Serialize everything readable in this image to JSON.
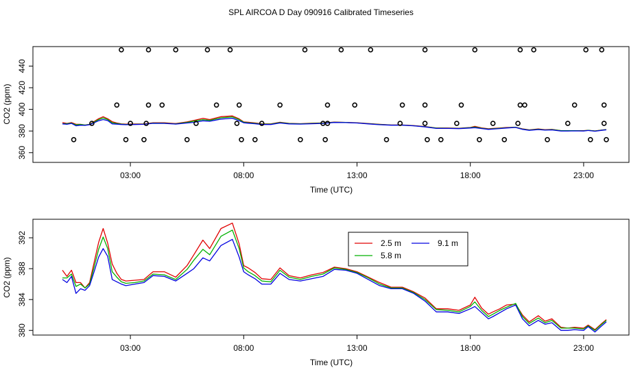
{
  "title": "SPL AIRCOA D  Day 090916  Calibrated Timeseries",
  "colors": {
    "series_2_5": "#e00000",
    "series_5_8": "#00b000",
    "series_9_1": "#0000e0"
  },
  "chart_data": [
    {
      "type": "scatter+line",
      "xlabel": "Time (UTC)",
      "ylabel": "CO2 (ppm)",
      "xlim": [
        -1.3,
        25
      ],
      "ylim": [
        351,
        458
      ],
      "xticks": [
        3,
        8,
        13,
        18,
        23
      ],
      "xtick_labels": [
        "03:00",
        "08:00",
        "13:00",
        "18:00",
        "23:00"
      ],
      "yticks": [
        360,
        380,
        400,
        420,
        440
      ],
      "ytick_labels": [
        "360",
        "380",
        "400",
        "420",
        "440"
      ],
      "calibration_points": {
        "x": [
          0.5,
          1.3,
          2.4,
          2.6,
          2.8,
          3.0,
          3.6,
          3.7,
          3.8,
          3.8,
          4.4,
          5.0,
          5.5,
          5.9,
          6.4,
          6.8,
          7.4,
          7.7,
          7.8,
          7.9,
          8.5,
          8.8,
          9.6,
          10.5,
          10.7,
          11.5,
          11.6,
          11.7,
          11.7,
          12.3,
          12.9,
          13.6,
          14.3,
          14.9,
          15.0,
          16.0,
          16.0,
          16.0,
          16.1,
          16.7,
          17.4,
          17.6,
          18.2,
          18.4,
          19.0,
          19.5,
          20.1,
          20.2,
          20.2,
          20.4,
          20.8,
          21.4,
          22.3,
          22.6,
          23.1,
          23.3,
          23.8,
          23.9,
          23.9,
          24.0
        ],
        "y": [
          372,
          387,
          404,
          455,
          372,
          387,
          372,
          387,
          404,
          455,
          404,
          455,
          372,
          387,
          455,
          404,
          455,
          387,
          404,
          372,
          372,
          387,
          404,
          372,
          455,
          387,
          372,
          387,
          404,
          455,
          404,
          455,
          372,
          387,
          404,
          455,
          404,
          387,
          372,
          372,
          387,
          404,
          455,
          372,
          387,
          372,
          387,
          404,
          455,
          404,
          455,
          372,
          387,
          404,
          455,
          372,
          455,
          404,
          387,
          372
        ]
      },
      "series": [
        {
          "name": "2.5 m",
          "color_key": "series_2_5"
        },
        {
          "name": "5.8 m",
          "color_key": "series_5_8"
        },
        {
          "name": "9.1 m",
          "color_key": "series_9_1"
        }
      ]
    },
    {
      "type": "line",
      "xlabel": "Time (UTC)",
      "ylabel": "CO2 (ppm)",
      "xlim": [
        -1.3,
        25
      ],
      "ylim": [
        379.4,
        394.4
      ],
      "xticks": [
        3,
        8,
        13,
        18,
        23
      ],
      "xtick_labels": [
        "03:00",
        "08:00",
        "13:00",
        "18:00",
        "23:00"
      ],
      "yticks": [
        380,
        384,
        388,
        392
      ],
      "ytick_labels": [
        "380",
        "384",
        "388",
        "392"
      ],
      "legend": {
        "position": "top-center",
        "ncol": 2
      },
      "series": [
        {
          "name": "2.5 m",
          "color_key": "series_2_5",
          "x": [
            0.0,
            0.2,
            0.4,
            0.6,
            0.8,
            1.0,
            1.2,
            1.4,
            1.6,
            1.8,
            2.0,
            2.2,
            2.4,
            2.6,
            2.8,
            3.2,
            3.6,
            4.0,
            4.5,
            5.0,
            5.5,
            5.8,
            6.2,
            6.5,
            7.0,
            7.5,
            7.8,
            8.0,
            8.2,
            8.5,
            8.8,
            9.2,
            9.6,
            10.0,
            10.5,
            11.0,
            11.5,
            12.0,
            12.5,
            13.0,
            13.5,
            14.0,
            14.5,
            15.0,
            15.5,
            16.0,
            16.5,
            17.0,
            17.5,
            18.0,
            18.2,
            18.5,
            18.8,
            19.0,
            19.3,
            19.6,
            20.0,
            20.3,
            20.6,
            21.0,
            21.3,
            21.6,
            22.0,
            22.3,
            22.6,
            23.0,
            23.2,
            23.5,
            23.8,
            24.0
          ],
          "y": [
            387.8,
            387.0,
            387.8,
            386.2,
            386.2,
            385.5,
            386.2,
            388.8,
            391.4,
            393.2,
            391.3,
            388.6,
            387.4,
            386.6,
            386.4,
            386.5,
            386.6,
            387.6,
            387.6,
            386.9,
            388.4,
            389.8,
            391.7,
            390.6,
            393.2,
            393.9,
            391.2,
            388.4,
            388.1,
            387.5,
            386.7,
            386.6,
            388.1,
            387.1,
            386.8,
            387.2,
            387.5,
            388.2,
            388.0,
            387.6,
            386.9,
            386.2,
            385.6,
            385.6,
            385.0,
            384.2,
            382.8,
            382.8,
            382.6,
            383.3,
            384.3,
            382.9,
            382.1,
            382.4,
            382.8,
            383.3,
            383.4,
            382.0,
            381.1,
            381.9,
            381.2,
            381.5,
            380.4,
            380.3,
            380.4,
            380.3,
            380.7,
            380.1,
            380.9,
            381.4
          ]
        },
        {
          "name": "5.8 m",
          "color_key": "series_5_8",
          "x": [
            0.0,
            0.2,
            0.4,
            0.6,
            0.8,
            1.0,
            1.2,
            1.4,
            1.6,
            1.8,
            2.0,
            2.2,
            2.4,
            2.6,
            2.8,
            3.2,
            3.6,
            4.0,
            4.5,
            5.0,
            5.5,
            5.8,
            6.2,
            6.5,
            7.0,
            7.5,
            7.8,
            8.0,
            8.2,
            8.5,
            8.8,
            9.2,
            9.6,
            10.0,
            10.5,
            11.0,
            11.5,
            12.0,
            12.5,
            13.0,
            13.5,
            14.0,
            14.5,
            15.0,
            15.5,
            16.0,
            16.5,
            17.0,
            17.5,
            18.0,
            18.2,
            18.5,
            18.8,
            19.0,
            19.3,
            19.6,
            20.0,
            20.3,
            20.6,
            21.0,
            21.3,
            21.6,
            22.0,
            22.3,
            22.6,
            23.0,
            23.2,
            23.5,
            23.8,
            24.0
          ],
          "y": [
            386.8,
            386.8,
            387.3,
            385.7,
            386.0,
            385.5,
            386.0,
            388.2,
            390.5,
            392.1,
            390.6,
            387.6,
            386.9,
            386.3,
            386.1,
            386.2,
            386.4,
            387.3,
            387.2,
            386.6,
            387.9,
            389.1,
            390.5,
            389.8,
            392.2,
            393.0,
            390.6,
            388.1,
            387.6,
            387.1,
            386.4,
            386.3,
            387.8,
            386.9,
            386.6,
            387.0,
            387.3,
            388.1,
            387.9,
            387.5,
            386.8,
            386.0,
            385.5,
            385.5,
            384.9,
            384.0,
            382.7,
            382.6,
            382.4,
            383.1,
            383.7,
            382.6,
            381.8,
            382.1,
            382.6,
            383.0,
            383.5,
            381.8,
            380.9,
            381.6,
            381.0,
            381.3,
            380.3,
            380.3,
            380.3,
            380.2,
            380.6,
            380.0,
            380.8,
            381.3
          ]
        },
        {
          "name": "9.1 m",
          "color_key": "series_9_1",
          "x": [
            0.0,
            0.2,
            0.4,
            0.6,
            0.8,
            1.0,
            1.2,
            1.4,
            1.6,
            1.8,
            2.0,
            2.2,
            2.4,
            2.6,
            2.8,
            3.2,
            3.6,
            4.0,
            4.5,
            5.0,
            5.5,
            5.8,
            6.2,
            6.5,
            7.0,
            7.5,
            7.8,
            8.0,
            8.2,
            8.5,
            8.8,
            9.2,
            9.6,
            10.0,
            10.5,
            11.0,
            11.5,
            12.0,
            12.5,
            13.0,
            13.5,
            14.0,
            14.5,
            15.0,
            15.5,
            16.0,
            16.5,
            17.0,
            17.5,
            18.0,
            18.2,
            18.5,
            18.8,
            19.0,
            19.3,
            19.6,
            20.0,
            20.3,
            20.6,
            21.0,
            21.3,
            21.6,
            22.0,
            22.3,
            22.6,
            23.0,
            23.2,
            23.5,
            23.8,
            24.0
          ],
          "y": [
            386.6,
            386.2,
            387.0,
            384.8,
            385.4,
            385.2,
            385.8,
            387.6,
            389.5,
            390.6,
            389.6,
            386.6,
            386.3,
            386.0,
            385.8,
            386.0,
            386.2,
            387.1,
            387.0,
            386.4,
            387.4,
            388.0,
            389.4,
            389.0,
            391.0,
            391.8,
            389.5,
            387.6,
            387.2,
            386.7,
            386.0,
            386.0,
            387.4,
            386.6,
            386.4,
            386.7,
            387.0,
            387.9,
            387.8,
            387.4,
            386.6,
            385.8,
            385.4,
            385.4,
            384.8,
            383.8,
            382.4,
            382.4,
            382.2,
            382.8,
            383.1,
            382.3,
            381.5,
            381.8,
            382.3,
            382.8,
            383.3,
            381.5,
            380.6,
            381.3,
            380.8,
            381.0,
            380.0,
            380.0,
            380.1,
            380.0,
            380.5,
            379.8,
            380.6,
            381.1
          ]
        }
      ]
    }
  ]
}
